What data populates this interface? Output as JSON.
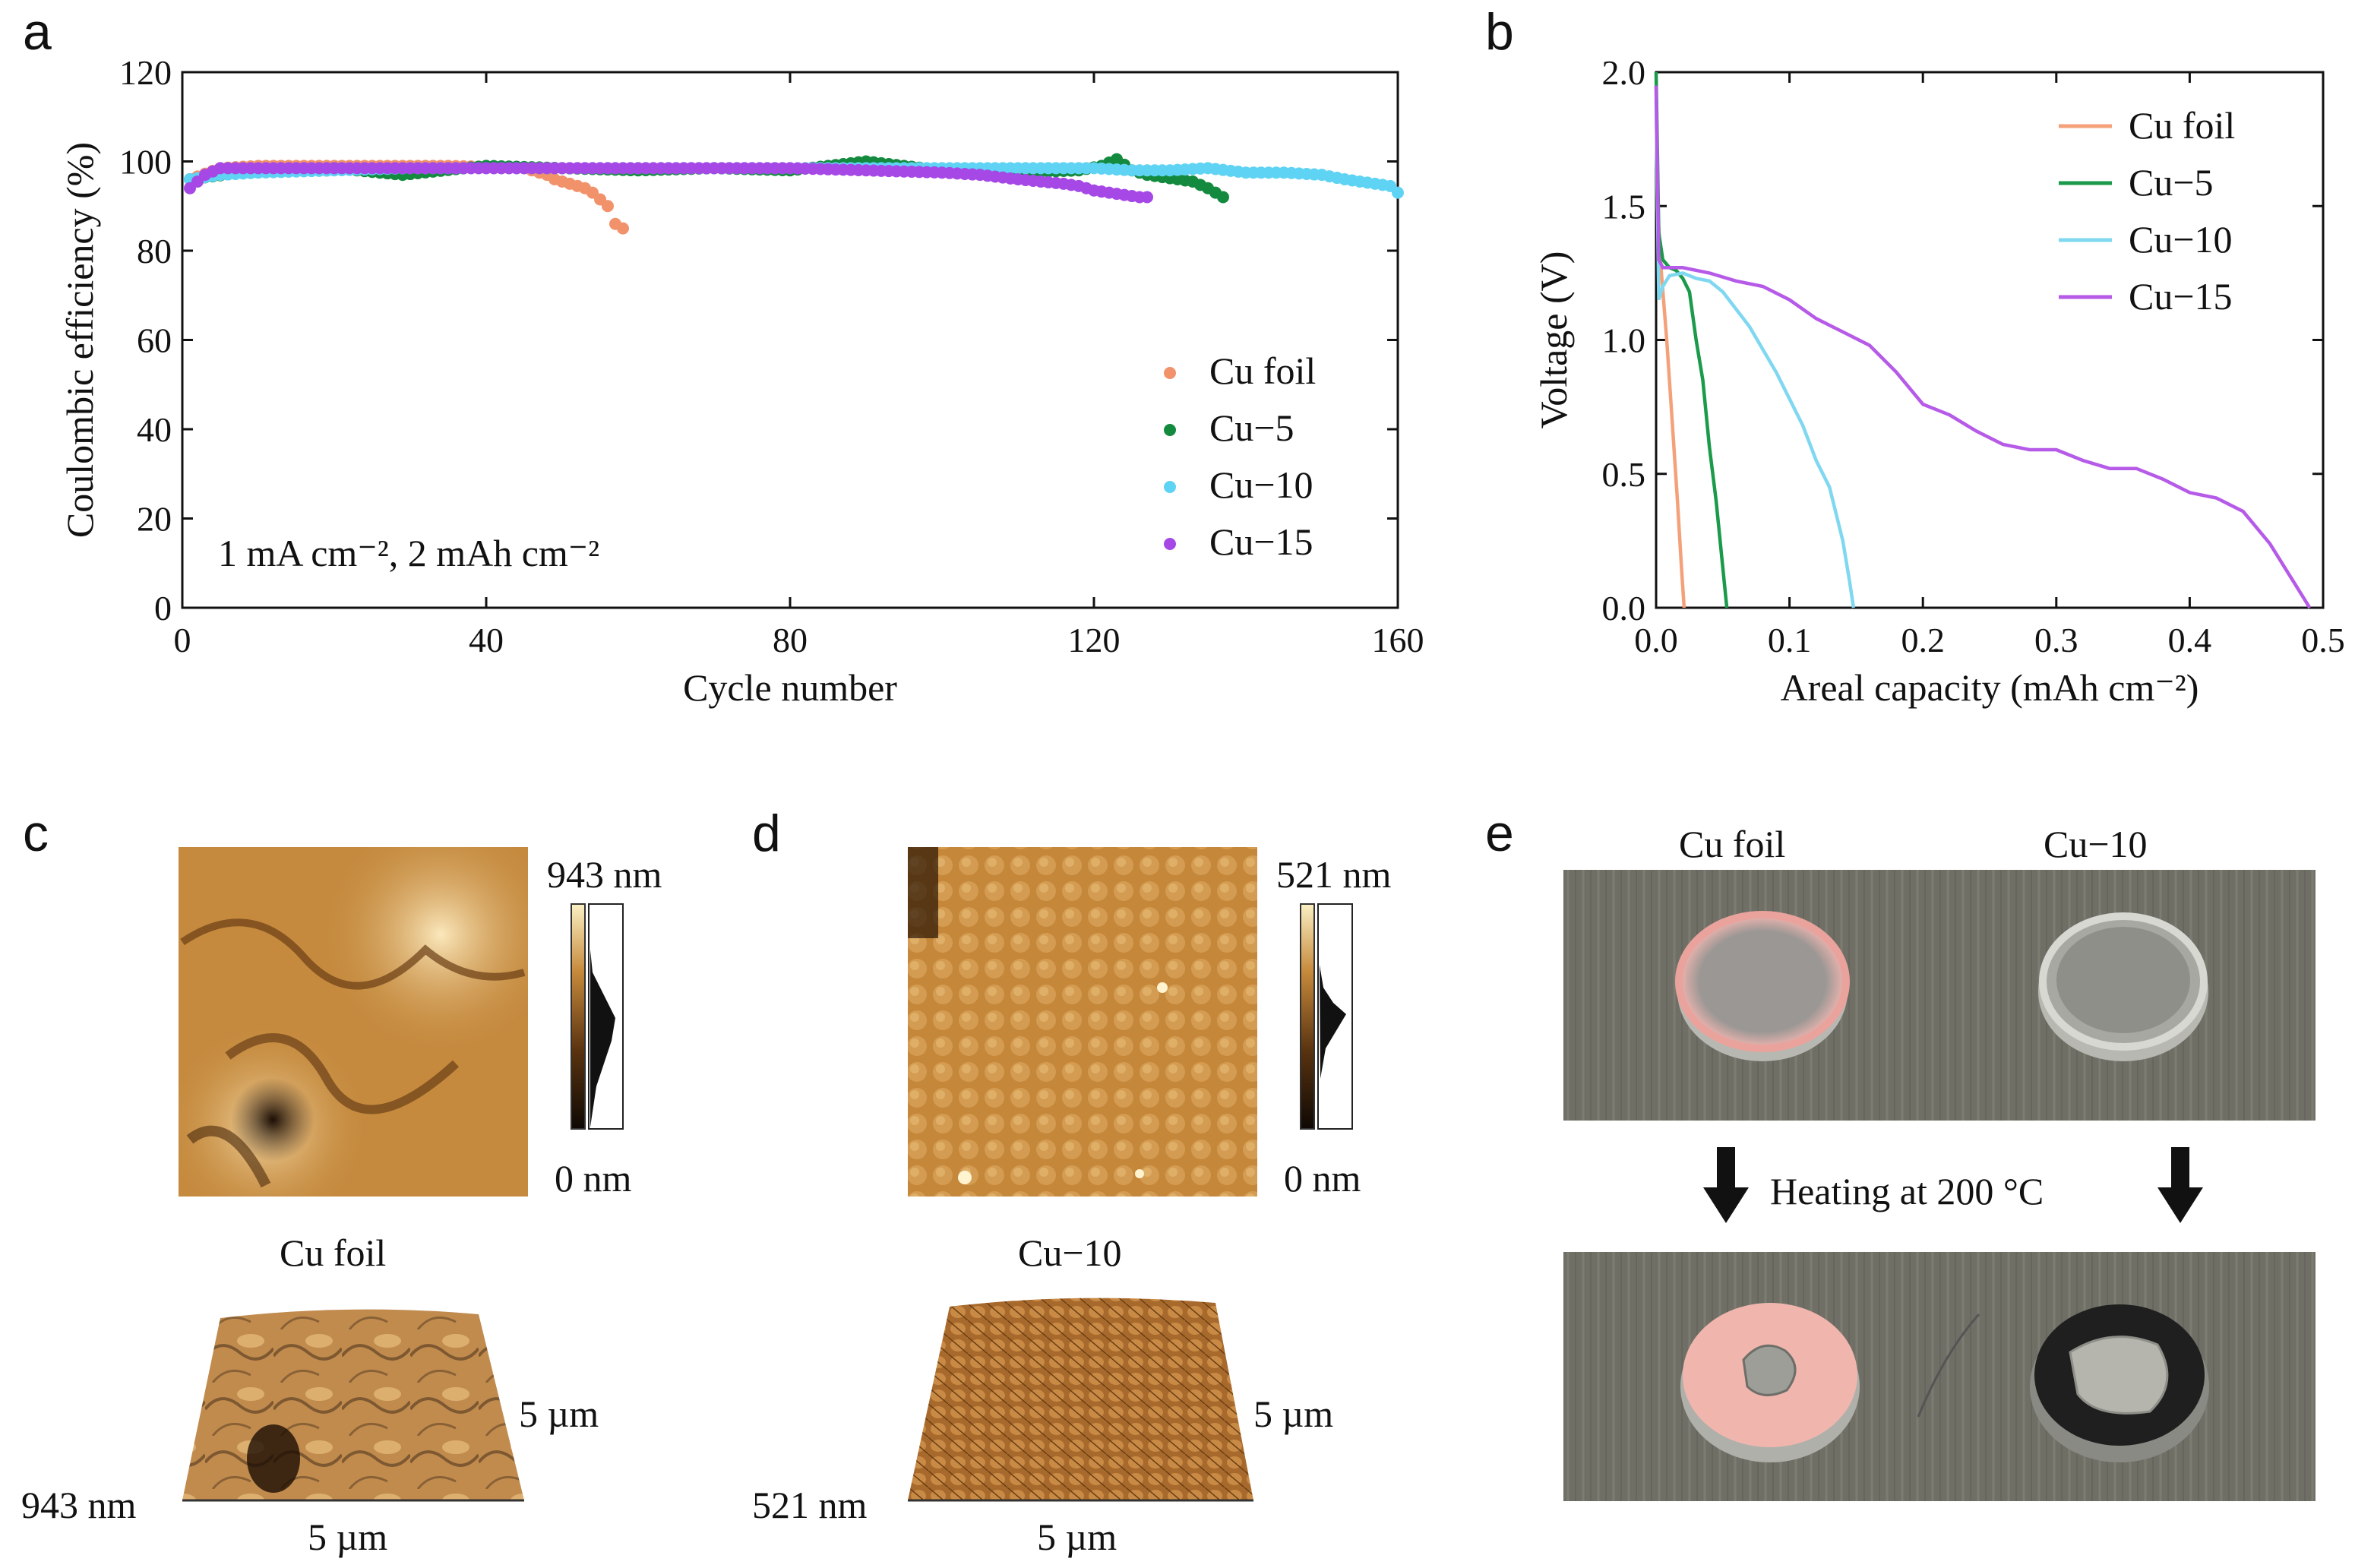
{
  "figure_panels": {
    "a": "a",
    "b": "b",
    "c": "c",
    "d": "d",
    "e": "e"
  },
  "colors": {
    "Cu foil": "#f4a17a",
    "Cu-5": "#1a9a4a",
    "Cu-10": "#7fd8f0",
    "Cu-15": "#b65ae8",
    "Cu foil dot": "#f2926b",
    "Cu-5 dot": "#138a3e",
    "Cu-10 dot": "#5fd3f3",
    "Cu-15 dot": "#a548e6"
  },
  "chart_data": [
    {
      "panel": "a",
      "type": "scatter",
      "title": "",
      "xlabel": "Cycle number",
      "ylabel": "Coulombic efficiency (%)",
      "xlim": [
        0,
        160
      ],
      "ylim": [
        0,
        120
      ],
      "xticks": [
        "0",
        "40",
        "80",
        "120",
        "160"
      ],
      "xtick_values": [
        0,
        40,
        80,
        120,
        160
      ],
      "yticks": [
        "0",
        "20",
        "40",
        "60",
        "80",
        "100",
        "120"
      ],
      "ytick_values": [
        0,
        20,
        40,
        60,
        80,
        100,
        120
      ],
      "annotation": "1 mA cm⁻², 2 mAh cm⁻²",
      "legend": [
        "Cu foil",
        "Cu−5",
        "Cu−10",
        "Cu−15"
      ],
      "legend_position": "bottom-right",
      "series": [
        {
          "name": "Cu foil",
          "color_key": "Cu foil dot",
          "x": [
            1,
            5,
            10,
            15,
            20,
            25,
            30,
            35,
            40,
            45,
            47,
            48,
            49,
            50,
            51,
            52,
            53,
            54,
            55,
            56,
            57,
            58
          ],
          "y": [
            96,
            98.5,
            99,
            99,
            99,
            99,
            99,
            99,
            98.8,
            98.5,
            97.5,
            97,
            96,
            95.5,
            95,
            94.5,
            94,
            93,
            91.5,
            90,
            86,
            85
          ]
        },
        {
          "name": "Cu−5",
          "color_key": "Cu-5 dot",
          "x": [
            1,
            10,
            20,
            29,
            40,
            50,
            60,
            70,
            80,
            90,
            100,
            110,
            118,
            121,
            123,
            125,
            127,
            129,
            131,
            133,
            135,
            136,
            137
          ],
          "y": [
            96,
            98,
            98.5,
            97,
            99,
            98.5,
            98,
            98.5,
            98,
            100,
            98,
            97.5,
            98,
            99,
            100.5,
            98,
            97,
            96.5,
            96,
            95.5,
            94,
            93,
            92
          ]
        },
        {
          "name": "Cu−10",
          "color_key": "Cu-10 dot",
          "x": [
            1,
            5,
            10,
            20,
            30,
            40,
            50,
            60,
            70,
            80,
            90,
            100,
            110,
            120,
            125,
            130,
            135,
            140,
            145,
            150,
            153,
            155,
            157,
            159,
            160
          ],
          "y": [
            96,
            97,
            97.5,
            98,
            98.5,
            98.5,
            98.5,
            98.5,
            98.5,
            98.5,
            98.5,
            98.5,
            98.5,
            98.5,
            98,
            98,
            98.5,
            97.5,
            97.5,
            97,
            96,
            95.5,
            95,
            94.5,
            93
          ]
        },
        {
          "name": "Cu−15",
          "color_key": "Cu-15 dot",
          "x": [
            1,
            3,
            5,
            10,
            20,
            30,
            40,
            50,
            60,
            70,
            80,
            90,
            100,
            105,
            110,
            113,
            116,
            118,
            120,
            122,
            124,
            126,
            127
          ],
          "y": [
            94,
            97,
            98.5,
            98.5,
            98.5,
            98.5,
            98.5,
            98.5,
            98.5,
            98.5,
            98.5,
            98,
            97.5,
            97,
            96,
            95.5,
            95,
            94.5,
            93.5,
            93,
            92.5,
            92,
            92
          ]
        }
      ]
    },
    {
      "panel": "b",
      "type": "line",
      "title": "",
      "xlabel": "Areal capacity (mAh cm⁻²)",
      "ylabel": "Voltage (V)",
      "xlim": [
        0,
        0.5
      ],
      "ylim": [
        0,
        2.0
      ],
      "xticks": [
        "0.0",
        "0.1",
        "0.2",
        "0.3",
        "0.4",
        "0.5"
      ],
      "xtick_values": [
        0,
        0.1,
        0.2,
        0.3,
        0.4,
        0.5
      ],
      "yticks": [
        "0.0",
        "0.5",
        "1.0",
        "1.5",
        "2.0"
      ],
      "ytick_values": [
        0,
        0.5,
        1.0,
        1.5,
        2.0
      ],
      "legend": [
        "Cu foil",
        "Cu−5",
        "Cu−10",
        "Cu−15"
      ],
      "legend_position": "top-right",
      "series": [
        {
          "name": "Cu foil",
          "color_key": "Cu foil",
          "x": [
            0,
            0.001,
            0.004,
            0.008,
            0.012,
            0.016,
            0.019,
            0.021
          ],
          "y": [
            1.95,
            1.5,
            1.25,
            1.0,
            0.7,
            0.4,
            0.15,
            0.0
          ]
        },
        {
          "name": "Cu−5",
          "color_key": "Cu-5",
          "x": [
            0,
            0.002,
            0.005,
            0.01,
            0.015,
            0.02,
            0.025,
            0.03,
            0.035,
            0.04,
            0.045,
            0.05,
            0.053
          ],
          "y": [
            2.0,
            1.4,
            1.3,
            1.27,
            1.26,
            1.23,
            1.18,
            1.0,
            0.85,
            0.6,
            0.4,
            0.15,
            0.0
          ]
        },
        {
          "name": "Cu−10",
          "color_key": "Cu-10",
          "x": [
            0,
            0.002,
            0.005,
            0.01,
            0.02,
            0.03,
            0.04,
            0.05,
            0.07,
            0.09,
            0.11,
            0.12,
            0.13,
            0.14,
            0.145,
            0.148
          ],
          "y": [
            1.9,
            1.15,
            1.2,
            1.24,
            1.25,
            1.23,
            1.22,
            1.18,
            1.05,
            0.88,
            0.68,
            0.55,
            0.45,
            0.25,
            0.1,
            0.0
          ]
        },
        {
          "name": "Cu−15",
          "color_key": "Cu-15",
          "x": [
            0,
            0.002,
            0.005,
            0.01,
            0.02,
            0.04,
            0.06,
            0.08,
            0.1,
            0.12,
            0.14,
            0.16,
            0.18,
            0.2,
            0.22,
            0.24,
            0.26,
            0.28,
            0.3,
            0.32,
            0.34,
            0.36,
            0.38,
            0.4,
            0.42,
            0.44,
            0.46,
            0.48,
            0.49
          ],
          "y": [
            1.95,
            1.3,
            1.27,
            1.27,
            1.27,
            1.25,
            1.22,
            1.2,
            1.15,
            1.08,
            1.03,
            0.98,
            0.88,
            0.76,
            0.72,
            0.66,
            0.61,
            0.59,
            0.59,
            0.55,
            0.52,
            0.52,
            0.48,
            0.43,
            0.41,
            0.36,
            0.24,
            0.08,
            0.0
          ]
        }
      ]
    }
  ],
  "panel_c": {
    "max_label": "943 nm",
    "min_label": "0 nm",
    "caption": "Cu foil",
    "dim_right": "5 µm",
    "dim_bottom": "5 µm",
    "dim_height": "943 nm"
  },
  "panel_d": {
    "max_label": "521 nm",
    "min_label": "0 nm",
    "caption": "Cu−10",
    "dim_right": "5 µm",
    "dim_bottom": "5 µm",
    "dim_height": "521 nm"
  },
  "panel_e": {
    "label_left": "Cu foil",
    "label_right": "Cu−10",
    "arrow_text": "Heating at 200 °C"
  }
}
